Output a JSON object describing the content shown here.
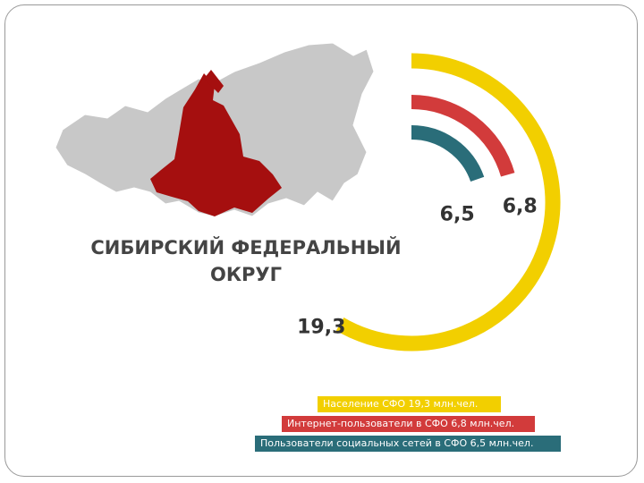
{
  "chart_data": {
    "type": "radial_bar",
    "title": "СИБИРСКИЙ ФЕДЕРАЛЬНЫЙ ОКРУГ",
    "series": [
      {
        "name": "Население СФО 19,3 млн.чел.",
        "color": "#f2cf00",
        "values": [
          19.3
        ],
        "value_labels": [
          "19,3"
        ]
      },
      {
        "name": "Интернет-пользователи в СФО 6,8 млн.чел.",
        "color": "#d23b3b",
        "values": [
          6.8
        ],
        "value_labels": [
          "6,8"
        ]
      },
      {
        "name": "Пользователи социальных сетей в СФО 6,5 млн.чел.",
        "color": "#2a6d79",
        "values": [
          6.5
        ],
        "value_labels": [
          "6,5"
        ]
      }
    ]
  }
}
